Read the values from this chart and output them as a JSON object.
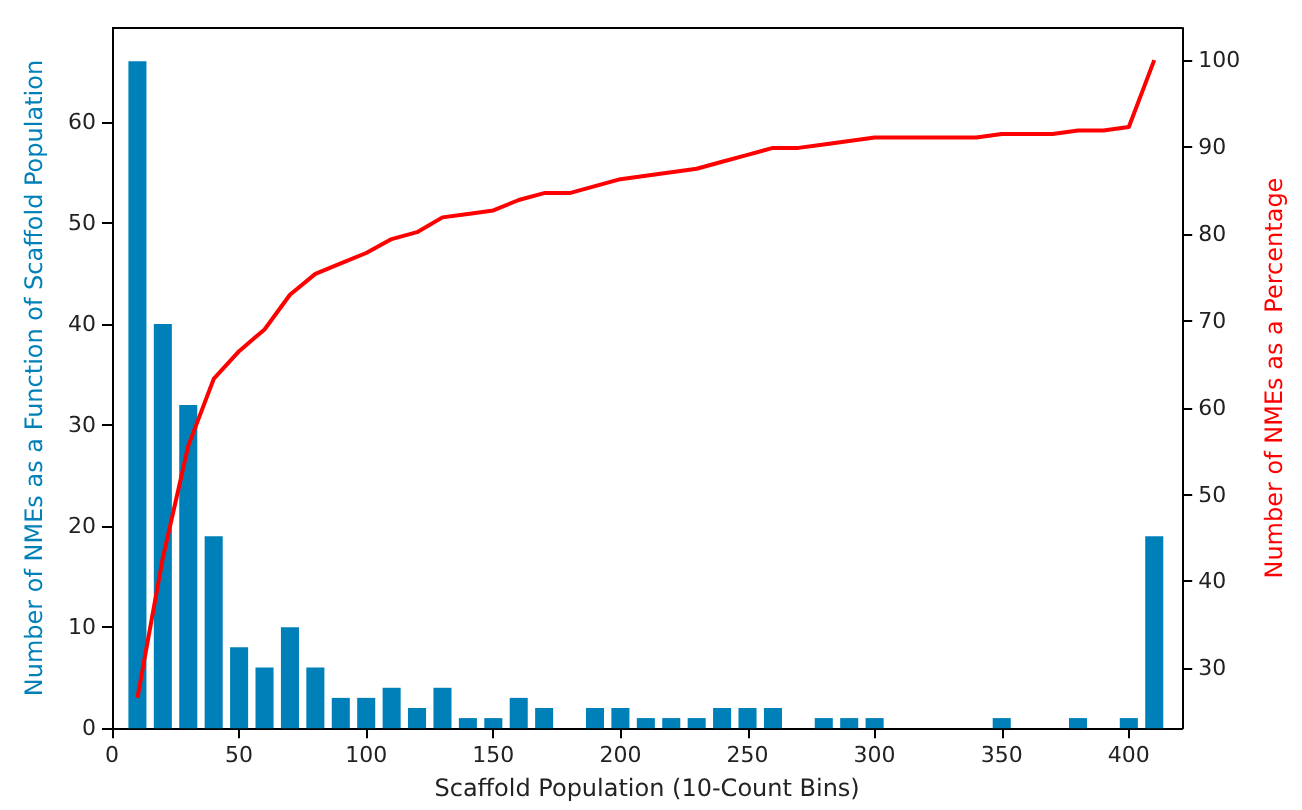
{
  "chart_data": {
    "type": "bar",
    "xlabel": "Scaffold Population (10-Count Bins)",
    "ylabel": "Number of NMEs as a Function of Scaffold Population",
    "y2label": "Number of NMEs as a Percentage",
    "x": [
      10,
      20,
      30,
      40,
      50,
      60,
      70,
      80,
      90,
      100,
      110,
      120,
      130,
      140,
      150,
      160,
      170,
      180,
      190,
      200,
      210,
      220,
      230,
      240,
      250,
      260,
      270,
      280,
      290,
      300,
      310,
      320,
      330,
      340,
      350,
      360,
      370,
      380,
      390,
      400,
      410
    ],
    "series": [
      {
        "color": "#0080b8",
        "values": [
          66,
          40,
          32,
          19,
          8,
          6,
          10,
          6,
          3,
          3,
          4,
          2,
          4,
          1,
          1,
          3,
          2,
          0,
          2,
          2,
          1,
          1,
          1,
          2,
          2,
          2,
          0,
          1,
          1,
          1,
          0,
          0,
          0,
          0,
          1,
          0,
          0,
          1,
          0,
          1,
          19
        ]
      },
      {
        "type": "line",
        "axis": "y2",
        "color": "#ff0000",
        "values": [
          26.6,
          42.7,
          55.6,
          63.3,
          66.5,
          69.0,
          73.0,
          75.4,
          76.6,
          77.8,
          79.4,
          80.2,
          81.9,
          82.3,
          82.7,
          83.9,
          84.7,
          84.7,
          85.5,
          86.3,
          86.7,
          87.1,
          87.5,
          88.3,
          89.1,
          89.9,
          89.9,
          90.3,
          90.7,
          91.1,
          91.1,
          91.1,
          91.1,
          91.1,
          91.5,
          91.5,
          91.5,
          91.9,
          91.9,
          92.3,
          100
        ]
      }
    ],
    "xlim": [
      0,
      421
    ],
    "xticks": [
      0,
      50,
      100,
      150,
      200,
      250,
      300,
      350,
      400
    ],
    "ylim": [
      0,
      69.3
    ],
    "yticks": [
      0,
      10,
      20,
      30,
      40,
      50,
      60
    ],
    "y2lim": [
      23.1,
      103.7
    ],
    "y2ticks": [
      30,
      40,
      50,
      60,
      70,
      80,
      90,
      100
    ],
    "grid": false,
    "marker": "none"
  }
}
